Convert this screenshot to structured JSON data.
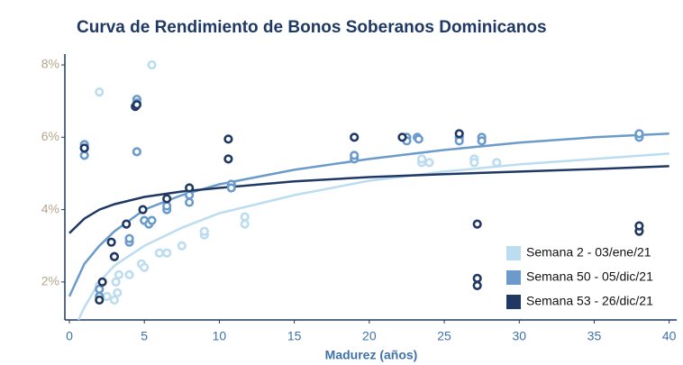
{
  "chart_data": {
    "type": "scatter",
    "title": "Curva de Rendimiento de Bonos Soberanos Dominicanos",
    "x_label": "Madurez (años)",
    "xlim": [
      -0.3,
      40.5
    ],
    "ylim": [
      0.95,
      8.3
    ],
    "xticks": [
      0,
      5,
      10,
      15,
      20,
      25,
      30,
      35,
      40
    ],
    "yticks": [
      {
        "value": 2,
        "label": "2%"
      },
      {
        "value": 4,
        "label": "4%"
      },
      {
        "value": 6,
        "label": "6%"
      },
      {
        "value": 8,
        "label": "8%"
      }
    ],
    "legend": "lower right",
    "series": [
      {
        "name": "Semana 2 - 03/ene/21",
        "color": "#bcdcf1",
        "x": [
          2,
          5.5,
          2,
          2.5,
          3,
          3.2,
          3.1,
          3.3,
          4,
          4.8,
          5,
          6,
          6.5,
          7.5,
          9,
          9,
          11.7,
          11.7,
          23.5,
          23.5,
          24,
          27,
          27,
          28.5,
          38
        ],
        "values": [
          7.25,
          8.0,
          1.9,
          1.6,
          1.5,
          1.7,
          2.0,
          2.2,
          2.2,
          2.5,
          2.4,
          2.8,
          2.8,
          3.0,
          3.3,
          3.4,
          3.6,
          3.8,
          5.3,
          5.4,
          5.3,
          5.4,
          5.3,
          5.3,
          6.1
        ],
        "trend": {
          "x": [
            0.6,
            1,
            2,
            3,
            5,
            7.5,
            10,
            15,
            20,
            25,
            30,
            35,
            40
          ],
          "y": [
            0.95,
            1.3,
            2.0,
            2.45,
            3.0,
            3.5,
            3.9,
            4.4,
            4.8,
            5.05,
            5.25,
            5.4,
            5.55
          ]
        }
      },
      {
        "name": "Semana 50 - 05/dic/21",
        "color": "#6b9bca",
        "x": [
          1,
          1,
          1,
          2,
          2,
          3,
          4,
          4,
          4.5,
          4.5,
          4.5,
          5,
          5.3,
          5.5,
          6.5,
          6.5,
          8,
          8,
          10.8,
          10.8,
          19,
          19,
          22.5,
          22.5,
          23.2,
          23.3,
          26,
          26,
          27.5,
          27.5,
          38,
          38
        ],
        "values": [
          5.7,
          5.5,
          5.8,
          1.6,
          1.8,
          2.7,
          3.1,
          3.2,
          7.05,
          6.95,
          5.6,
          3.7,
          3.6,
          3.7,
          4.0,
          4.1,
          4.2,
          4.4,
          4.7,
          4.6,
          5.4,
          5.5,
          6.0,
          5.9,
          6.0,
          5.95,
          6.0,
          5.9,
          6.0,
          5.9,
          6.0,
          6.1
        ],
        "trend": {
          "x": [
            0,
            1,
            2,
            3,
            5,
            7.5,
            10,
            15,
            20,
            25,
            30,
            35,
            40
          ],
          "y": [
            1.6,
            2.5,
            3.0,
            3.4,
            4.0,
            4.4,
            4.7,
            5.1,
            5.4,
            5.65,
            5.85,
            6.0,
            6.1
          ]
        }
      },
      {
        "name": "Semana 53 - 26/dic/21",
        "color": "#1f3864",
        "x": [
          1,
          2,
          2.2,
          2.8,
          3,
          3.8,
          4.4,
          4.5,
          4.9,
          6.5,
          8,
          10.6,
          10.6,
          19,
          22.2,
          26,
          27.2,
          27.2,
          27.2,
          38,
          38
        ],
        "values": [
          5.7,
          1.5,
          2.0,
          3.1,
          2.7,
          3.6,
          6.85,
          6.9,
          4.0,
          4.3,
          4.6,
          5.95,
          5.4,
          6.0,
          6.0,
          6.1,
          3.6,
          2.1,
          1.9,
          3.4,
          3.55
        ],
        "trend": {
          "x": [
            0,
            1,
            2,
            3,
            5,
            7.5,
            10,
            15,
            20,
            25,
            30,
            35,
            40
          ],
          "y": [
            3.35,
            3.75,
            4.0,
            4.15,
            4.35,
            4.5,
            4.6,
            4.78,
            4.9,
            4.98,
            5.05,
            5.12,
            5.2
          ]
        }
      }
    ]
  }
}
